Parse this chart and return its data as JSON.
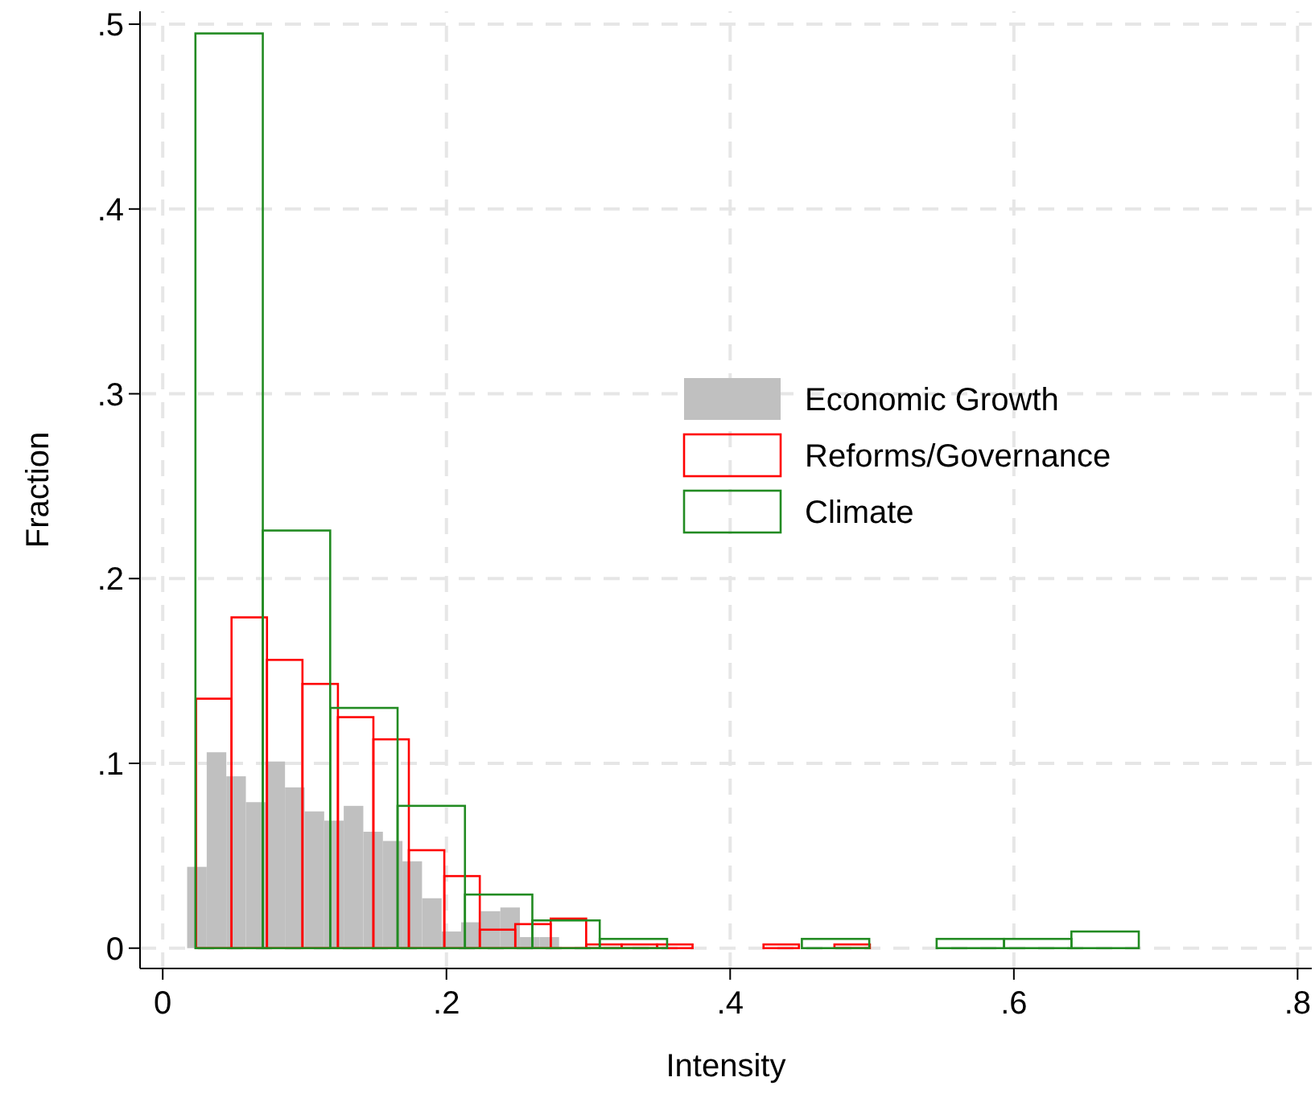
{
  "chart_data": {
    "type": "bar",
    "xlabel": "Intensity",
    "ylabel": "Fraction",
    "xlim": [
      -0.016,
      0.81
    ],
    "ylim": [
      -0.011,
      0.507
    ],
    "xticks": [
      0,
      {
        "value": 0.2,
        "label": ".2"
      },
      {
        "value": 0.4,
        "label": ".4"
      },
      {
        "value": 0.6,
        "label": ".6"
      },
      {
        "value": 0.8,
        "label": ".8"
      }
    ],
    "yticks": [
      0,
      {
        "value": 0.1,
        "label": ".1"
      },
      {
        "value": 0.2,
        "label": ".2"
      },
      {
        "value": 0.3,
        "label": ".3"
      },
      {
        "value": 0.4,
        "label": ".4"
      },
      {
        "value": 0.5,
        "label": ".5"
      }
    ],
    "grid": true,
    "legend": "right",
    "series": [
      {
        "name": "Economic Growth",
        "color": "#c0c0c0",
        "x": [
          0.0241,
          0.0379,
          0.0517,
          0.0655,
          0.0793,
          0.0931,
          0.1069,
          0.1207,
          0.1345,
          0.1483,
          0.1621,
          0.1759,
          0.1897,
          0.2035,
          0.2173,
          0.2311,
          0.2449,
          0.2587,
          0.2725
        ],
        "values": [
          0.044,
          0.106,
          0.093,
          0.079,
          0.101,
          0.087,
          0.074,
          0.069,
          0.077,
          0.063,
          0.058,
          0.047,
          0.027,
          0.009,
          0.014,
          0.02,
          0.022,
          0.006,
          0.006
        ]
      },
      {
        "name": "Reforms/Governance",
        "color": "#ff0000",
        "x": [
          0.036,
          0.061,
          0.086,
          0.111,
          0.136,
          0.161,
          0.186,
          0.211,
          0.236,
          0.261,
          0.286,
          0.311,
          0.336,
          0.361,
          0.386,
          0.411,
          0.436,
          0.461,
          0.486
        ],
        "values": [
          0.135,
          0.179,
          0.156,
          0.143,
          0.125,
          0.113,
          0.053,
          0.039,
          0.01,
          0.013,
          0.016,
          0.002,
          0.002,
          0.002,
          0,
          0,
          0.002,
          0,
          0.002
        ]
      },
      {
        "name": "Climate",
        "color": "#228b22",
        "x": [
          0.0468,
          0.0943,
          0.1418,
          0.1893,
          0.2368,
          0.2843,
          0.3318,
          0.3793,
          0.4268,
          0.4743,
          0.5218,
          0.5693,
          0.6168,
          0.6643
        ],
        "values": [
          0.495,
          0.226,
          0.13,
          0.077,
          0.029,
          0.015,
          0.005,
          0,
          0,
          0.005,
          0,
          0.005,
          0.005,
          0.009
        ]
      }
    ]
  }
}
